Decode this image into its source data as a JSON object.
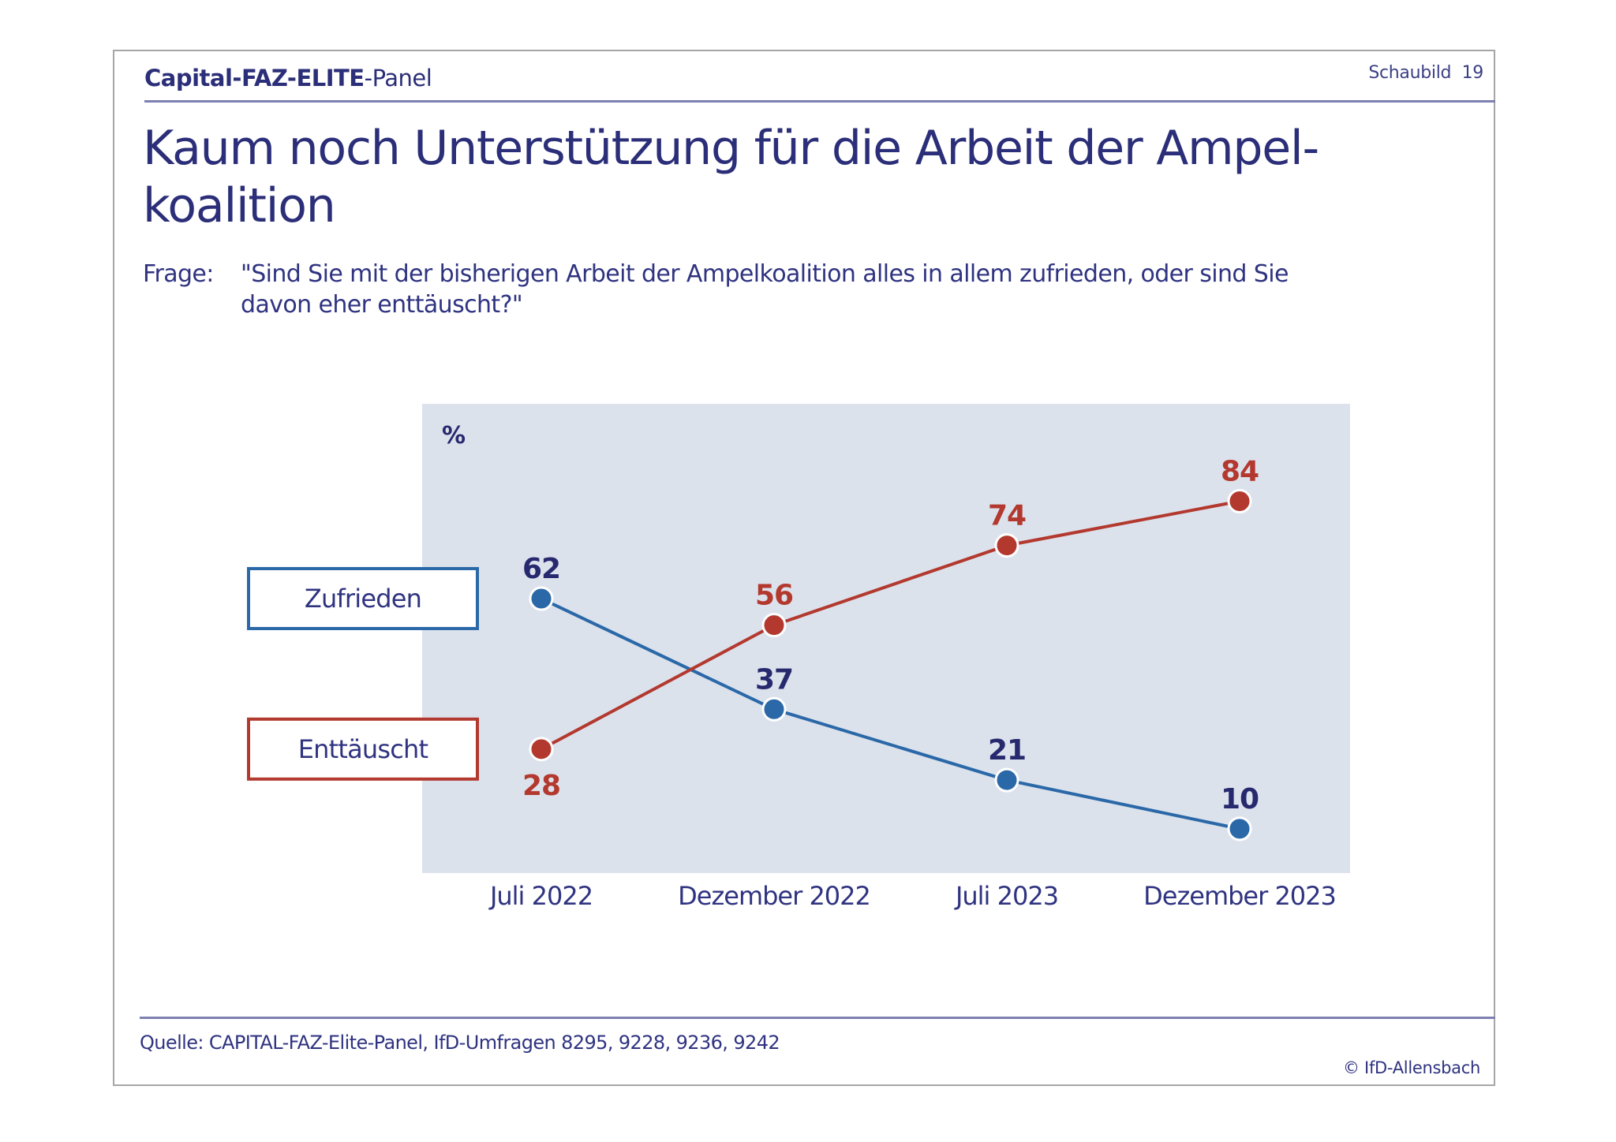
{
  "header": {
    "brand_bold": "Capital-FAZ-ELITE",
    "brand_rest": "-Panel",
    "figure_label": "Schaubild  19"
  },
  "title_line1": "Kaum noch Unterstützung für die Arbeit der Ampel-",
  "title_line2": "koalition",
  "question": {
    "label": "Frage:",
    "line1": "\"Sind Sie mit der bisherigen Arbeit der Ampelkoalition alles in allem zufrieden, oder sind Sie",
    "line2": "davon eher enttäuscht?\""
  },
  "chart_data": {
    "type": "line",
    "title": "Kaum noch Unterstützung für die Arbeit der Ampelkoalition",
    "ylabel": "%",
    "xlabel": "",
    "categories": [
      "Juli 2022",
      "Dezember 2022",
      "Juli 2023",
      "Dezember 2023"
    ],
    "series": [
      {
        "name": "Zufrieden",
        "color": "#2a68a8",
        "label_color": "#27296e",
        "label_position": "above",
        "values": [
          62,
          37,
          21,
          10
        ]
      },
      {
        "name": "Enttäuscht",
        "color": "#b3392f",
        "label_color": "#b3392f",
        "label_position": "above_except_first",
        "values": [
          28,
          56,
          74,
          84
        ]
      }
    ],
    "ylim": [
      0,
      106
    ],
    "grid": false,
    "legend": "left",
    "plot_background": "#dce2ec"
  },
  "footer": {
    "source": "Quelle: CAPITAL-FAZ-Elite-Panel, IfD-Umfragen 8295, 9228, 9236, 9242",
    "copyright": "© IfD-Allensbach"
  }
}
